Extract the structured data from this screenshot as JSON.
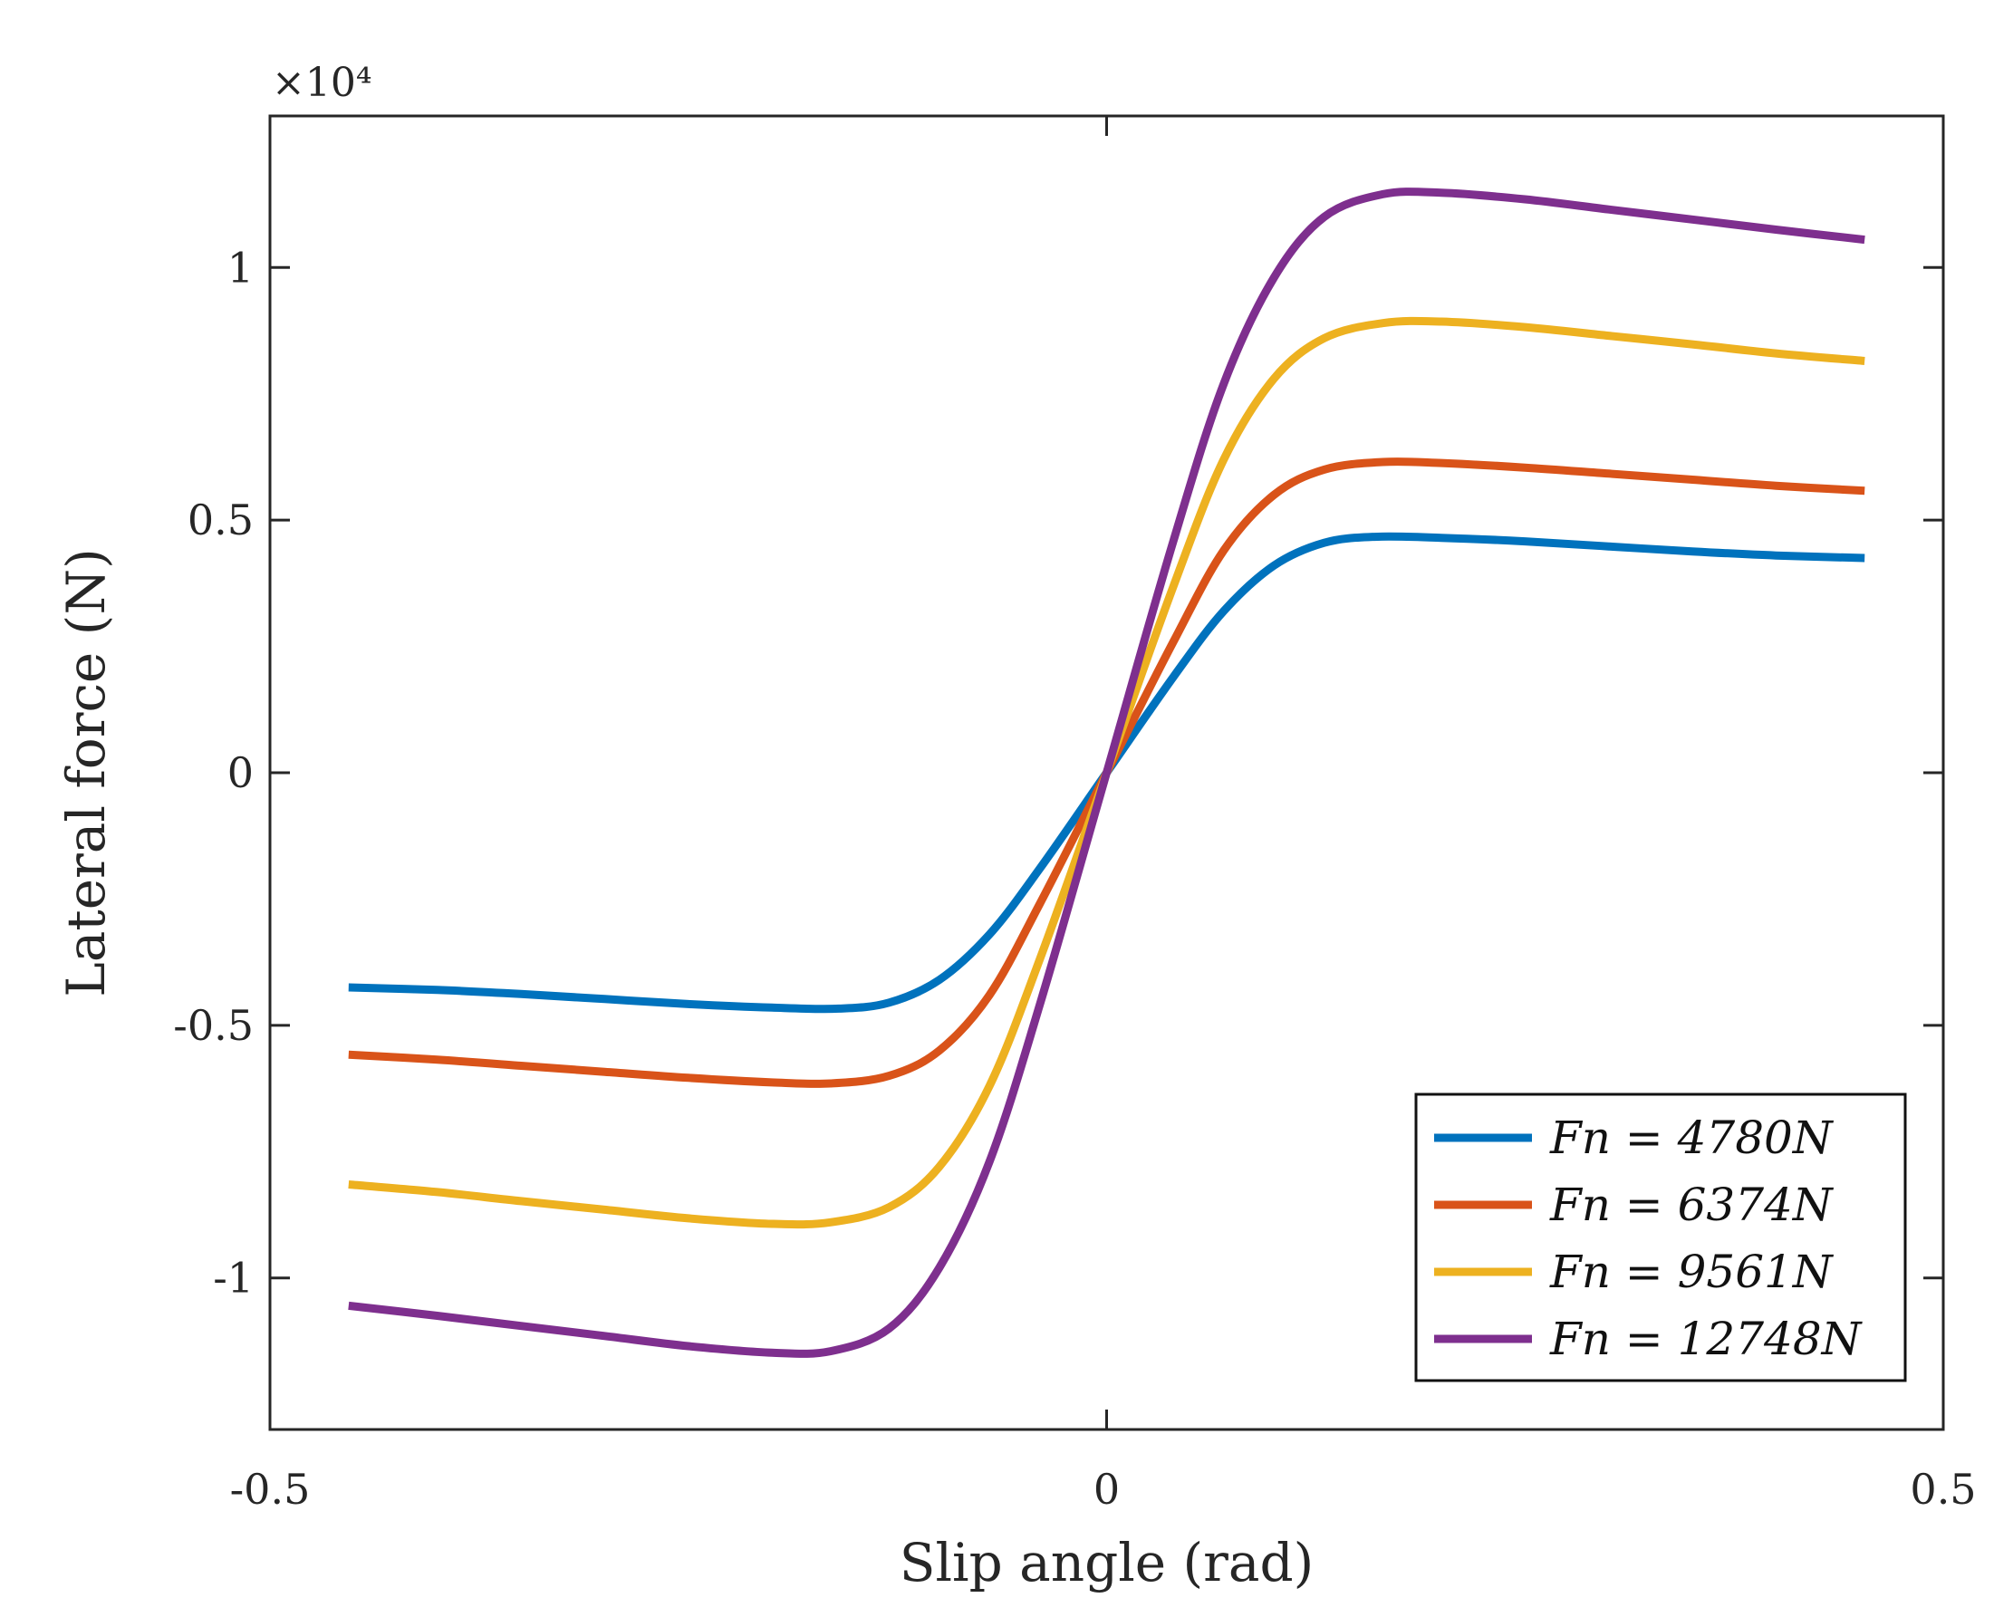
{
  "chart_data": {
    "type": "line",
    "title": "",
    "xlabel": "Slip angle (rad)",
    "ylabel": "Lateral force (N)",
    "xlim": [
      -0.5,
      0.5
    ],
    "ylim": [
      -1.3,
      1.3
    ],
    "y_exponent_label": "×10⁴",
    "y_scale": 10000,
    "grid": false,
    "legend_position": "bottom-right",
    "x_ticks": [
      -0.5,
      0,
      0.5
    ],
    "x_tick_labels": [
      "-0.5",
      "0",
      "0.5"
    ],
    "y_ticks": [
      -1,
      -0.5,
      0,
      0.5,
      1
    ],
    "y_tick_labels": [
      "-1",
      "-0.5",
      "0",
      "0.5",
      "1"
    ],
    "series": [
      {
        "name": "Fn = 4780N",
        "legend_label": "Fn = 4780N",
        "color": "#0072BD",
        "x": [
          -0.453,
          -0.4,
          -0.35,
          -0.3,
          -0.25,
          -0.2,
          -0.16,
          -0.13,
          -0.1,
          -0.07,
          -0.04,
          0,
          0.04,
          0.07,
          0.1,
          0.13,
          0.16,
          0.2,
          0.25,
          0.3,
          0.35,
          0.4,
          0.453
        ],
        "values": [
          -0.425,
          -0.43,
          -0.438,
          -0.448,
          -0.458,
          -0.465,
          -0.467,
          -0.455,
          -0.41,
          -0.32,
          -0.19,
          0,
          0.19,
          0.32,
          0.41,
          0.455,
          0.467,
          0.465,
          0.458,
          0.448,
          0.438,
          0.43,
          0.425
        ]
      },
      {
        "name": "Fn = 6374N",
        "legend_label": "Fn = 6374N",
        "color": "#D95319",
        "x": [
          -0.453,
          -0.4,
          -0.35,
          -0.3,
          -0.25,
          -0.2,
          -0.165,
          -0.13,
          -0.1,
          -0.07,
          -0.04,
          0,
          0.04,
          0.07,
          0.1,
          0.13,
          0.165,
          0.2,
          0.25,
          0.3,
          0.35,
          0.4,
          0.453
        ],
        "values": [
          -0.558,
          -0.568,
          -0.58,
          -0.592,
          -0.604,
          -0.613,
          -0.615,
          -0.6,
          -0.55,
          -0.44,
          -0.26,
          0,
          0.26,
          0.44,
          0.55,
          0.6,
          0.615,
          0.613,
          0.604,
          0.592,
          0.58,
          0.568,
          0.558
        ]
      },
      {
        "name": "Fn = 9561N",
        "legend_label": "Fn = 9561N",
        "color": "#EDB120",
        "x": [
          -0.453,
          -0.4,
          -0.35,
          -0.3,
          -0.25,
          -0.2,
          -0.165,
          -0.13,
          -0.1,
          -0.07,
          -0.04,
          0,
          0.04,
          0.07,
          0.1,
          0.13,
          0.165,
          0.2,
          0.25,
          0.3,
          0.35,
          0.4,
          0.453
        ],
        "values": [
          -0.815,
          -0.83,
          -0.848,
          -0.865,
          -0.882,
          -0.893,
          -0.89,
          -0.86,
          -0.78,
          -0.62,
          -0.37,
          0,
          0.37,
          0.62,
          0.78,
          0.86,
          0.89,
          0.893,
          0.882,
          0.865,
          0.848,
          0.83,
          0.815
        ]
      },
      {
        "name": "Fn = 12748N",
        "legend_label": "Fn = 12748N",
        "color": "#7E2F8E",
        "x": [
          -0.453,
          -0.4,
          -0.35,
          -0.3,
          -0.25,
          -0.2,
          -0.165,
          -0.13,
          -0.1,
          -0.07,
          -0.04,
          0,
          0.04,
          0.07,
          0.1,
          0.13,
          0.165,
          0.2,
          0.25,
          0.3,
          0.35,
          0.4,
          0.453
        ],
        "values": [
          -1.055,
          -1.075,
          -1.095,
          -1.115,
          -1.135,
          -1.148,
          -1.145,
          -1.1,
          -0.98,
          -0.77,
          -0.46,
          0,
          0.46,
          0.77,
          0.98,
          1.1,
          1.145,
          1.148,
          1.135,
          1.115,
          1.095,
          1.075,
          1.055
        ]
      }
    ]
  }
}
